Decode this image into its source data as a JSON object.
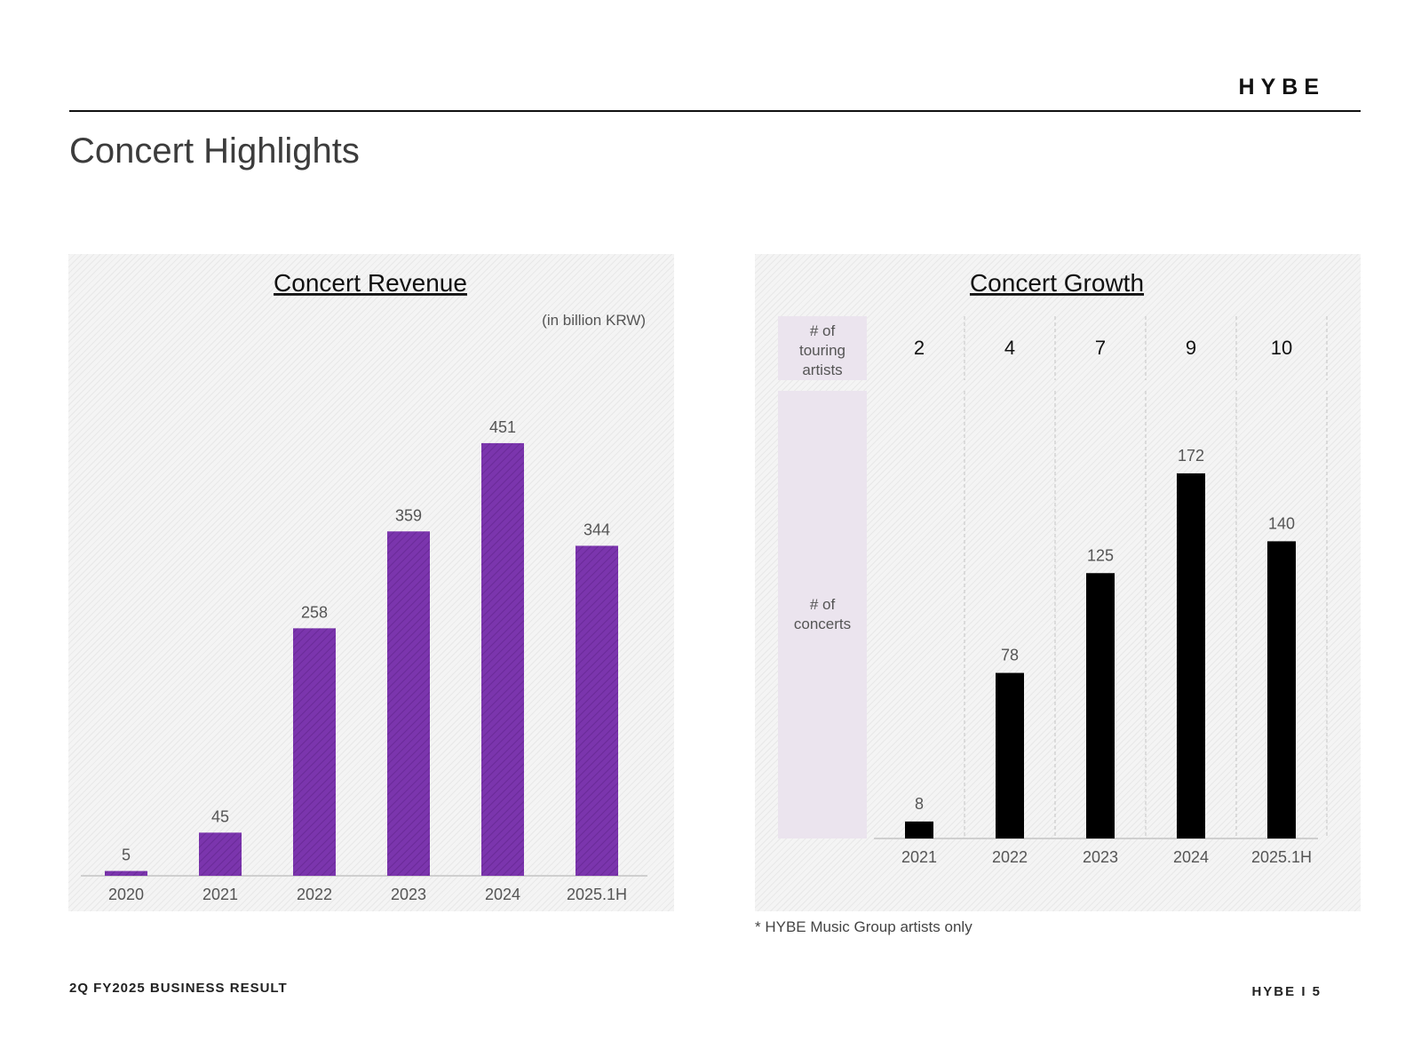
{
  "brand": "HYBE",
  "page_title": "Concert Highlights",
  "footnote": "* HYBE Music Group artists only",
  "footer": {
    "left": "2Q FY2025 BUSINESS RESULT",
    "right_brand": "HYBE",
    "separator": "I",
    "page_number": "5"
  },
  "colors": {
    "revenue_bar": "#7b35ad",
    "concert_bar": "#000000",
    "label_col": "#ebe4ee"
  },
  "chart_data": [
    {
      "type": "bar",
      "title": "Concert Revenue",
      "unit": "(in billion KRW)",
      "categories": [
        "2020",
        "2021",
        "2022",
        "2023",
        "2024",
        "2025.1H"
      ],
      "values": [
        5,
        45,
        258,
        359,
        451,
        344
      ],
      "ylim": [
        0,
        500
      ],
      "grid": false,
      "legend": "none"
    },
    {
      "type": "bar",
      "title": "Concert Growth",
      "categories": [
        "2021",
        "2022",
        "2023",
        "2024",
        "2025.1H"
      ],
      "touring_artists_label": "# of touring artists",
      "touring_artists": [
        2,
        4,
        7,
        9,
        10
      ],
      "concerts_label": "# of concerts",
      "values": [
        8,
        78,
        125,
        172,
        140
      ],
      "ylim": [
        0,
        200
      ],
      "grid": false,
      "legend": "none"
    }
  ]
}
